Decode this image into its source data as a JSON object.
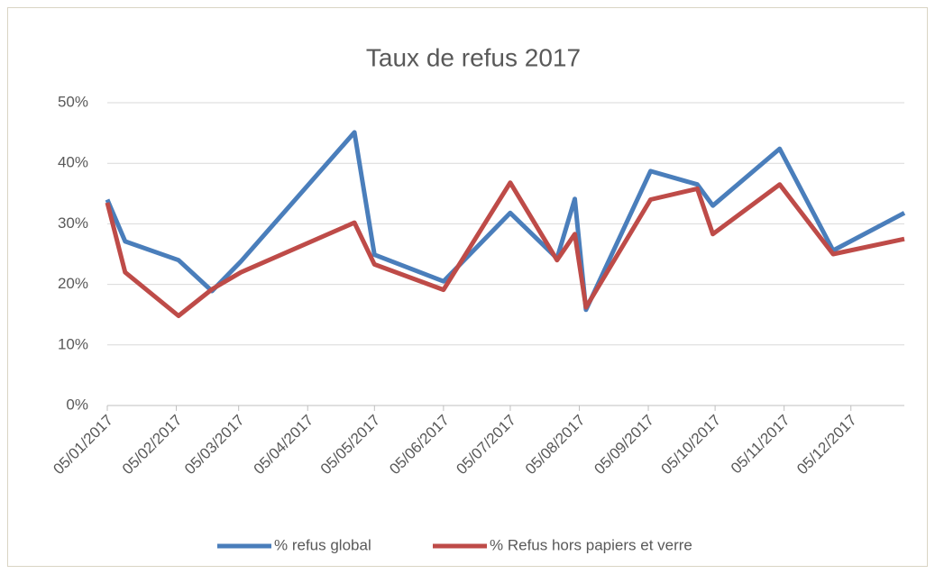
{
  "chart_data": {
    "type": "line",
    "title": "Taux de refus 2017",
    "x": [
      "2017-01-05",
      "2017-01-13",
      "2017-02-06",
      "2017-02-21",
      "2017-03-06",
      "2017-04-26",
      "2017-05-05",
      "2017-06-05",
      "2017-07-05",
      "2017-07-26",
      "2017-08-03",
      "2017-08-08",
      "2017-09-06",
      "2017-09-27",
      "2017-10-04",
      "2017-11-03",
      "2017-11-27",
      "2017-12-29"
    ],
    "series": [
      {
        "name": "% refus global",
        "color": "#4a7ebb",
        "values": [
          34,
          27.1,
          24,
          18.9,
          23.8,
          45.1,
          24.9,
          20.5,
          31.8,
          24.3,
          34.1,
          15.8,
          38.7,
          36.5,
          33,
          42.4,
          25.6,
          31.8
        ]
      },
      {
        "name": "% Refus hors papiers et verre",
        "color": "#be4b48",
        "values": [
          33.5,
          22,
          14.8,
          19.2,
          22,
          30.2,
          23.3,
          19.1,
          36.8,
          24,
          28.3,
          16.2,
          34,
          35.8,
          28.3,
          36.5,
          25,
          27.5
        ]
      }
    ],
    "xlim": [
      "2017-01-05",
      "2017-12-29"
    ],
    "xticks": [
      {
        "value": "2017-01-05",
        "label": "05/01/2017"
      },
      {
        "value": "2017-02-05",
        "label": "05/02/2017"
      },
      {
        "value": "2017-03-05",
        "label": "05/03/2017"
      },
      {
        "value": "2017-04-05",
        "label": "05/04/2017"
      },
      {
        "value": "2017-05-05",
        "label": "05/05/2017"
      },
      {
        "value": "2017-06-05",
        "label": "05/06/2017"
      },
      {
        "value": "2017-07-05",
        "label": "05/07/2017"
      },
      {
        "value": "2017-08-05",
        "label": "05/08/2017"
      },
      {
        "value": "2017-09-05",
        "label": "05/09/2017"
      },
      {
        "value": "2017-10-05",
        "label": "05/10/2017"
      },
      {
        "value": "2017-11-05",
        "label": "05/11/2017"
      },
      {
        "value": "2017-12-05",
        "label": "05/12/2017"
      }
    ],
    "ylim": [
      0,
      50
    ],
    "yticks": [
      {
        "value": 0,
        "label": "0%"
      },
      {
        "value": 10,
        "label": "10%"
      },
      {
        "value": 20,
        "label": "20%"
      },
      {
        "value": 30,
        "label": "30%"
      },
      {
        "value": 40,
        "label": "40%"
      },
      {
        "value": 50,
        "label": "50%"
      }
    ],
    "grid": true,
    "legend": "bottom"
  }
}
